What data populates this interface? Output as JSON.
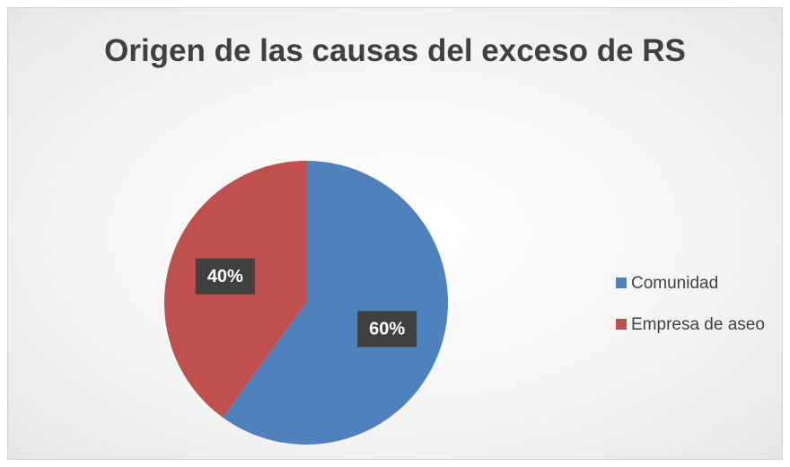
{
  "chart_data": {
    "type": "pie",
    "title": "Origen de las causas del exceso de RS",
    "categories": [
      "Comunidad",
      "Empresa de aseo"
    ],
    "values": [
      60,
      40
    ],
    "value_labels": [
      "60%",
      "40%"
    ],
    "colors": [
      "#4f81bd",
      "#c0504d"
    ],
    "legend": "right"
  }
}
